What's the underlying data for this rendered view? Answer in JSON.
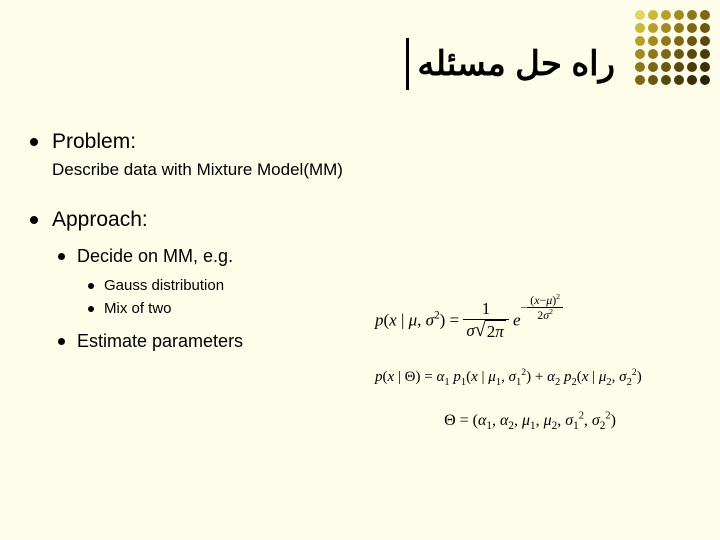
{
  "slide": {
    "background_color": "#fdfde9",
    "title": "راه حل مسئله",
    "title_fontsize": 34,
    "dot_grid": {
      "rows": 6,
      "cols": 6,
      "colors": [
        "#e2d26a",
        "#cbb63e",
        "#b89f2b",
        "#a38a20",
        "#8f781a",
        "#7c6715",
        "#cbb63e",
        "#b89f2b",
        "#a38a20",
        "#8f781a",
        "#7c6715",
        "#6a5811",
        "#b89f2b",
        "#a38a20",
        "#8f781a",
        "#7c6715",
        "#6a5811",
        "#59490e",
        "#a38a20",
        "#8f781a",
        "#7c6715",
        "#6a5811",
        "#59490e",
        "#493c0b",
        "#8f781a",
        "#7c6715",
        "#6a5811",
        "#59490e",
        "#493c0b",
        "#3a2f08",
        "#7c6715",
        "#6a5811",
        "#59490e",
        "#493c0b",
        "#3a2f08",
        "#2c2306"
      ]
    }
  },
  "content": {
    "problem_label": "Problem:",
    "problem_desc": "Describe data with Mixture Model(MM)",
    "approach_label": "Approach:",
    "decide_label": "Decide on MM, e.g.",
    "gauss_label": "Gauss distribution",
    "mix_label": "Mix of two",
    "estimate_label": "Estimate parameters"
  },
  "formulas": {
    "f1_lhs": "p(x | μ, σ²) = ",
    "f1_num": "1",
    "f1_den_sigma": "σ",
    "f1_den_twopi": "2π",
    "f1_e": "e",
    "f1_exp_num": "(x−μ)²",
    "f1_exp_den": "2σ²",
    "f2": "p(x | Θ) = α₁ p₁(x | μ₁, σ₁²) + α₂ p₂(x | μ₂, σ₂²)",
    "f3": "Θ = (α₁, α₂, μ₁, μ₂, σ₁², σ₂²)"
  },
  "style": {
    "text_color": "#000000",
    "bullet_color": "#000000",
    "body_fontsize": 17
  }
}
